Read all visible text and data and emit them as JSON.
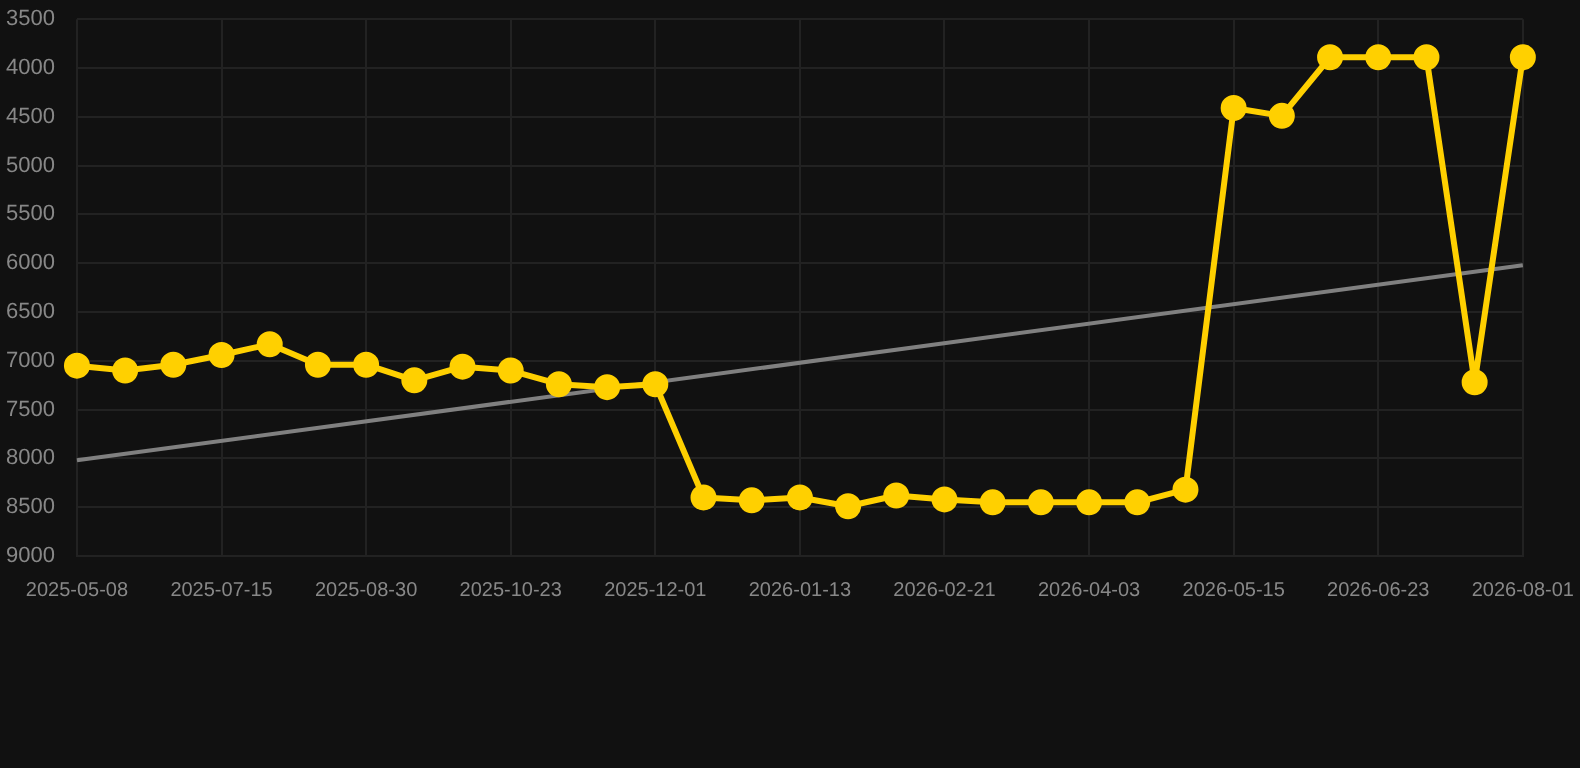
{
  "chart_data": {
    "type": "line",
    "categories": [
      "2025-05-08",
      null,
      null,
      "2025-07-15",
      null,
      null,
      "2025-08-30",
      null,
      null,
      "2025-10-23",
      null,
      null,
      "2025-12-01",
      null,
      null,
      "2026-01-13",
      null,
      null,
      "2026-02-21",
      null,
      null,
      "2026-04-03",
      null,
      null,
      "2026-05-15",
      null,
      null,
      "2026-06-23",
      null,
      null,
      "2026-08-01"
    ],
    "series": [
      {
        "color": "#ffd000",
        "marker": "circle",
        "values": [
          7050,
          7100,
          7040,
          6940,
          6830,
          7040,
          7040,
          7200,
          7060,
          7100,
          7240,
          7270,
          7240,
          8400,
          8430,
          8400,
          8490,
          8380,
          8420,
          8450,
          8450,
          8450,
          8450,
          8320,
          4410,
          4490,
          3890,
          3890,
          3890,
          7220,
          3890
        ]
      },
      {
        "type": "line",
        "color": "#808080",
        "marker": "none",
        "values": [
          8020,
          null,
          null,
          null,
          null,
          null,
          null,
          null,
          null,
          null,
          null,
          null,
          null,
          null,
          null,
          null,
          null,
          null,
          null,
          null,
          null,
          null,
          null,
          null,
          null,
          null,
          null,
          null,
          null,
          null,
          6020
        ]
      }
    ],
    "ylim": [
      9000,
      3500
    ],
    "yticks": [
      3500,
      4000,
      4500,
      5000,
      5500,
      6000,
      6500,
      7000,
      7500,
      8000,
      8500,
      9000
    ],
    "grid": true,
    "legend": false
  }
}
